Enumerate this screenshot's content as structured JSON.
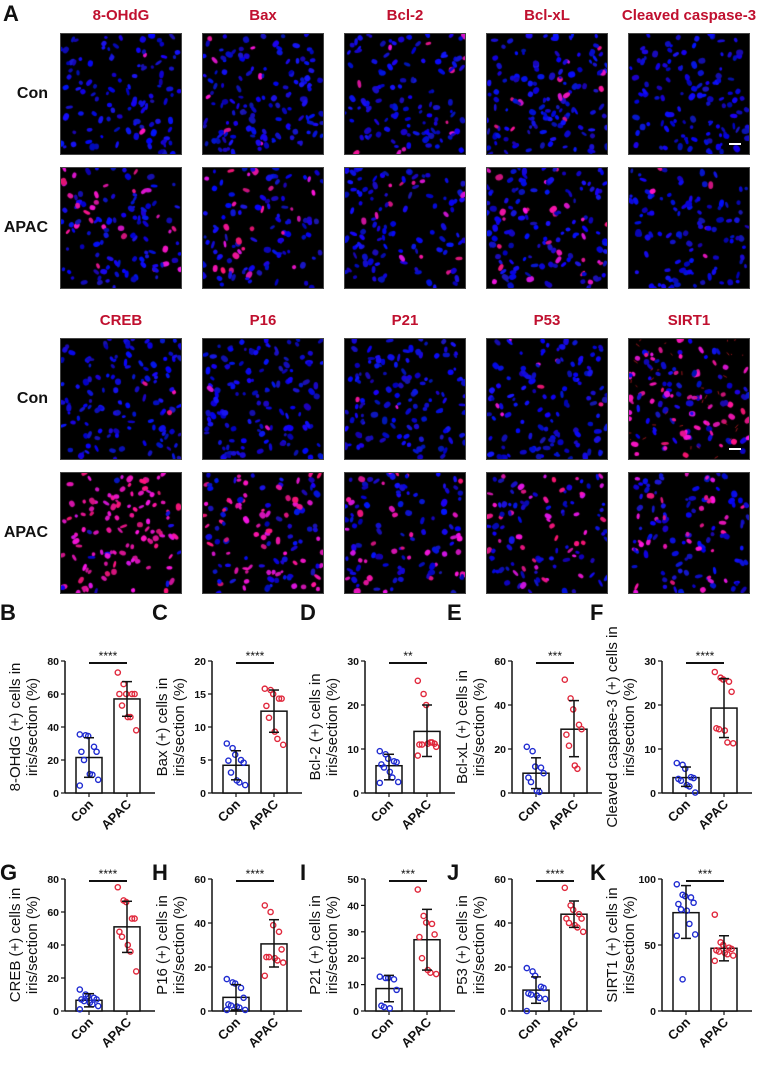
{
  "figure": {
    "panel_A_letter": "A",
    "image_grid": {
      "blocks": [
        {
          "columns": [
            "8-OHdG",
            "Bax",
            "Bcl-2",
            "Bcl-xL",
            "Cleaved caspase-3"
          ],
          "rows": [
            "Con",
            "APAC"
          ],
          "scale_bar_column": 4
        },
        {
          "columns": [
            "CREB",
            "P16",
            "P21",
            "P53",
            "SIRT1"
          ],
          "rows": [
            "Con",
            "APAC"
          ],
          "scale_bar_column": 4
        }
      ],
      "colors": {
        "nuclei": "#2a2aff",
        "marker": "#e0205a",
        "background": "#000000",
        "title": "#c0102f"
      }
    }
  },
  "chart_data": [
    {
      "panel": "B",
      "type": "bar",
      "title": "",
      "categories": [
        "Con",
        "APAC"
      ],
      "ylabel": "8-OHdG (+) cells in iris/section (%)",
      "ylim": [
        0,
        80
      ],
      "yticks": [
        0,
        20,
        40,
        60,
        80
      ],
      "values": [
        21.5,
        57
      ],
      "error": [
        [
          9.5,
          33.5
        ],
        [
          46.5,
          67.5
        ]
      ],
      "significance": "****",
      "points": [
        [
          35.5,
          35,
          34.5,
          28,
          25,
          25,
          20,
          11.5,
          11,
          8,
          4.5
        ],
        [
          73,
          66,
          60,
          60,
          60,
          60,
          53,
          46,
          46,
          38
        ]
      ]
    },
    {
      "panel": "C",
      "type": "bar",
      "title": "",
      "categories": [
        "Con",
        "APAC"
      ],
      "ylabel": "Bax (+) cells in iris/section (%)",
      "ylim": [
        0,
        20
      ],
      "yticks": [
        0,
        5,
        10,
        15,
        20
      ],
      "values": [
        4.2,
        12.4
      ],
      "error": [
        [
          2.0,
          6.4
        ],
        [
          9.2,
          15.6
        ]
      ],
      "significance": "****",
      "points": [
        [
          7.5,
          6.8,
          5.8,
          5.0,
          4.6,
          4.9,
          3.1,
          1.9,
          1.6,
          1.2
        ],
        [
          15.8,
          15.6,
          15.0,
          14.3,
          14.3,
          13.2,
          11.4,
          9.3,
          8.2,
          7.3
        ]
      ]
    },
    {
      "panel": "D",
      "type": "bar",
      "title": "",
      "categories": [
        "Con",
        "APAC"
      ],
      "ylabel": "Bcl-2 (+) cells in iris/section (%)",
      "ylim": [
        0,
        30
      ],
      "yticks": [
        0,
        10,
        20,
        30
      ],
      "values": [
        6.2,
        14.0
      ],
      "error": [
        [
          3.0,
          8.8
        ],
        [
          8.3,
          20.0
        ]
      ],
      "significance": "**",
      "points": [
        [
          9.5,
          8.8,
          7.8,
          7.2,
          7.0,
          6.5,
          5.8,
          4.8,
          3.5,
          2.5,
          2.3
        ],
        [
          25.5,
          22.5,
          20.0,
          11.5,
          11.2,
          11.0,
          11.0,
          11.2,
          11.5,
          10.5,
          8.5
        ]
      ]
    },
    {
      "panel": "E",
      "type": "bar",
      "title": "",
      "categories": [
        "Con",
        "APAC"
      ],
      "ylabel": "Bcl-xL (+) cells in iris/section (%)",
      "ylim": [
        0,
        60
      ],
      "yticks": [
        0,
        20,
        40,
        60
      ],
      "values": [
        9.0,
        29.0
      ],
      "error": [
        [
          2.0,
          16.0
        ],
        [
          16.5,
          42.0
        ]
      ],
      "significance": "***",
      "points": [
        [
          21,
          19,
          12,
          11.5,
          9,
          7,
          5,
          1,
          0.5
        ],
        [
          51.5,
          43,
          38,
          31,
          29,
          26.5,
          21.5,
          12.5,
          11
        ]
      ]
    },
    {
      "panel": "F",
      "type": "bar",
      "title": "",
      "categories": [
        "Con",
        "APAC"
      ],
      "ylabel": "Cleaved caspase-3 (+) cells in iris/section (%)",
      "ylim": [
        0,
        30
      ],
      "yticks": [
        0,
        10,
        20,
        30
      ],
      "values": [
        3.5,
        19.3
      ],
      "error": [
        [
          1.5,
          5.9
        ],
        [
          12.6,
          26.0
        ]
      ],
      "significance": "****",
      "points": [
        [
          6.8,
          6.4,
          5.5,
          3.6,
          3.4,
          3.2,
          2.8,
          1.8,
          1.5,
          0.1
        ],
        [
          27.5,
          26.2,
          25.8,
          25.3,
          23.0,
          14.7,
          14.5,
          14.2,
          11.5,
          11.3
        ]
      ]
    },
    {
      "panel": "G",
      "type": "bar",
      "title": "",
      "categories": [
        "Con",
        "APAC"
      ],
      "ylabel": "CREB (+) cells in iris/section (%)",
      "ylim": [
        0,
        80
      ],
      "yticks": [
        0,
        20,
        40,
        60,
        80
      ],
      "values": [
        6.5,
        51
      ],
      "error": [
        [
          2.5,
          10.5
        ],
        [
          35.5,
          66.5
        ]
      ],
      "significance": "****",
      "points": [
        [
          13,
          10,
          9,
          8,
          7,
          7,
          6,
          5,
          4,
          3,
          1
        ],
        [
          75,
          67,
          66,
          56,
          56,
          48,
          45,
          40,
          36,
          24
        ]
      ]
    },
    {
      "panel": "H",
      "type": "bar",
      "title": "",
      "categories": [
        "Con",
        "APAC"
      ],
      "ylabel": "P16 (+) cells in iris/section (%)",
      "ylim": [
        0,
        60
      ],
      "yticks": [
        0,
        20,
        40,
        60
      ],
      "values": [
        6.2,
        30.5
      ],
      "error": [
        [
          0.5,
          12.0
        ],
        [
          20.0,
          41.5
        ]
      ],
      "significance": "****",
      "points": [
        [
          14.5,
          13,
          12.5,
          10.5,
          6,
          3,
          2.5,
          2,
          1.5,
          0.5,
          0.5
        ],
        [
          48,
          45,
          39,
          36,
          28,
          24.5,
          24.5,
          24,
          23,
          22,
          16
        ]
      ]
    },
    {
      "panel": "I",
      "type": "bar",
      "title": "",
      "categories": [
        "Con",
        "APAC"
      ],
      "ylabel": "P21 (+) cells in iris/section (%)",
      "ylim": [
        0,
        50
      ],
      "yticks": [
        0,
        10,
        20,
        30,
        40,
        50
      ],
      "values": [
        8.5,
        27
      ],
      "error": [
        [
          3.5,
          13.5
        ],
        [
          15.5,
          38.5
        ]
      ],
      "significance": "***",
      "points": [
        [
          13,
          12.5,
          12.5,
          12,
          8,
          2,
          1.5,
          1
        ],
        [
          46,
          36,
          33.5,
          33,
          29,
          28,
          20,
          15.5,
          14.5,
          14
        ]
      ]
    },
    {
      "panel": "J",
      "type": "bar",
      "title": "",
      "categories": [
        "Con",
        "APAC"
      ],
      "ylabel": "P53 (+) cells in iris/section (%)",
      "ylim": [
        0,
        60
      ],
      "yticks": [
        0,
        20,
        40,
        60
      ],
      "values": [
        9.5,
        44
      ],
      "error": [
        [
          3.5,
          15.5
        ],
        [
          38,
          50
        ]
      ],
      "significance": "****",
      "points": [
        [
          19.5,
          18,
          16,
          11,
          10.5,
          8,
          7.5,
          7,
          6,
          5.5,
          0
        ],
        [
          56,
          48,
          46,
          44,
          42,
          42,
          40,
          39,
          38,
          36
        ]
      ]
    },
    {
      "panel": "K",
      "type": "bar",
      "title": "",
      "categories": [
        "Con",
        "APAC"
      ],
      "ylabel": "SIRT1 (+) cells in iris/section (%)",
      "ylim": [
        0,
        100
      ],
      "yticks": [
        0,
        50,
        100
      ],
      "values": [
        74.5,
        47.5
      ],
      "error": [
        [
          55,
          95
        ],
        [
          38,
          57
        ]
      ],
      "significance": "***",
      "points": [
        [
          96,
          88,
          87,
          86,
          82,
          81,
          77,
          76,
          66,
          58,
          57,
          24
        ],
        [
          73,
          52,
          50,
          48,
          47,
          46,
          45,
          44,
          43,
          42,
          38
        ]
      ]
    }
  ],
  "chart_style": {
    "con_color": "#1f2bd1",
    "apac_color": "#e0283c",
    "bar_fill": "#ffffff",
    "axis_color": "#111111"
  }
}
